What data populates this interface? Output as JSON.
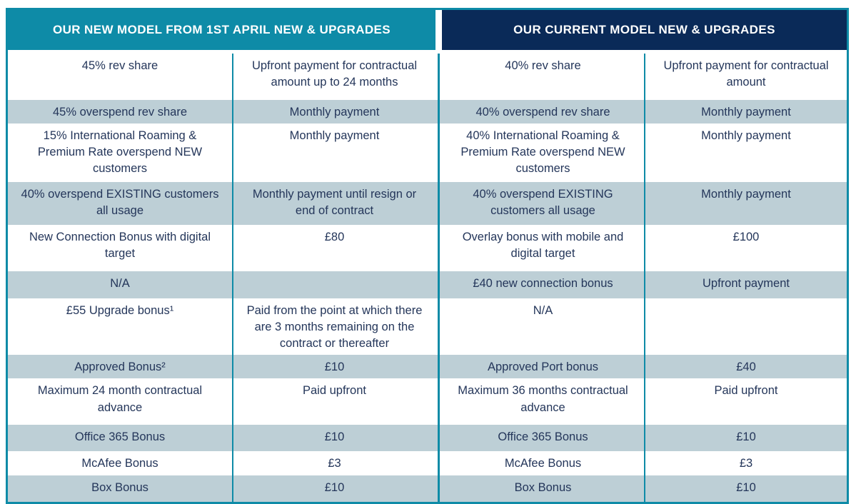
{
  "table": {
    "headers": [
      "OUR NEW MODEL FROM 1ST APRIL NEW & UPGRADES",
      "OUR CURRENT MODEL NEW & UPGRADES"
    ],
    "column_roles": [
      "new-model-item",
      "new-model-payment",
      "current-model-item",
      "current-model-payment"
    ],
    "rows": [
      [
        "45% rev share",
        "Upfront payment for contractual amount up to 24 months",
        "40% rev share",
        "Upfront payment for contractual amount"
      ],
      [
        "45% overspend rev share",
        "Monthly payment",
        "40% overspend rev share",
        "Monthly payment"
      ],
      [
        "15% International Roaming & Premium Rate overspend NEW customers",
        "Monthly payment",
        "40% International Roaming & Premium Rate overspend NEW customers",
        "Monthly payment"
      ],
      [
        "40% overspend EXISTING customers all usage",
        "Monthly payment until resign or end of contract",
        "40% overspend EXISTING customers all usage",
        "Monthly payment"
      ],
      [
        "New Connection Bonus with digital target",
        "£80",
        "Overlay bonus with mobile and digital target",
        "£100"
      ],
      [
        "N/A",
        "",
        "£40 new connection bonus",
        "Upfront payment"
      ],
      [
        "£55 Upgrade bonus¹",
        "Paid from the point at which there are 3 months remaining on the contract or thereafter",
        "N/A",
        ""
      ],
      [
        "Approved Bonus²",
        "£10",
        "Approved Port bonus",
        "£40"
      ],
      [
        "Maximum 24 month contractual advance",
        "Paid upfront",
        "Maximum 36 months contractual advance",
        "Paid upfront"
      ],
      [
        "Office 365 Bonus",
        "£10",
        "Office 365 Bonus",
        "£10"
      ],
      [
        "McAfee Bonus",
        "£3",
        "McAfee Bonus",
        "£3"
      ],
      [
        "Box Bonus",
        "£10",
        "Box Bonus",
        "£10"
      ]
    ],
    "colors": {
      "teal_header": "#0E8BA7",
      "navy_header": "#0A2A58",
      "alt_row": "#BDCFD6",
      "body_text": "#24365A",
      "header_text": "#FFFFFF"
    }
  }
}
